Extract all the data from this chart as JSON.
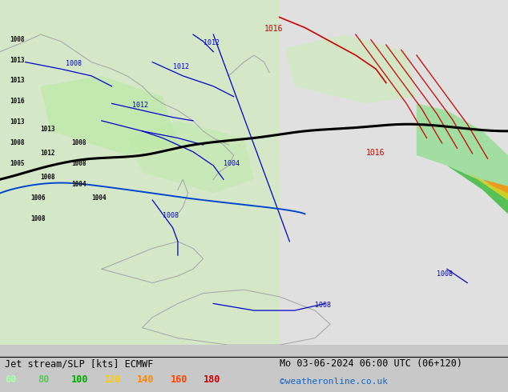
{
  "title_left": "Jet stream/SLP [kts] ECMWF",
  "title_right": "Mo 03-06-2024 06:00 UTC (06+120)",
  "credit": "©weatheronline.co.uk",
  "legend_values": [
    "60",
    "80",
    "100",
    "120",
    "140",
    "160",
    "180"
  ],
  "legend_colors": [
    "#aaffaa",
    "#55cc55",
    "#00aa00",
    "#ffcc00",
    "#ff8800",
    "#ff4400",
    "#cc0000"
  ],
  "background_color": "#d8d8d8",
  "map_bg": "#e8e8e8",
  "figsize": [
    6.34,
    4.9
  ],
  "dpi": 100
}
